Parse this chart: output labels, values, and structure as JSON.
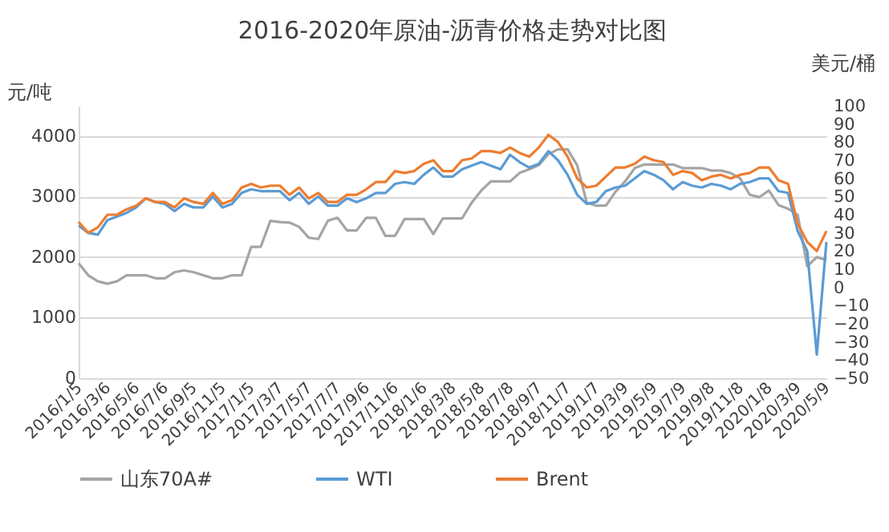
{
  "chart_data": {
    "type": "line",
    "title": "2016-2020年原油-沥青价格走势对比图",
    "ylabel": "元/吨",
    "y2label": "美元/桶",
    "categories": [
      "2016/1/5",
      null,
      null,
      "2016/3/6",
      null,
      null,
      "2016/5/6",
      null,
      null,
      "2016/7/6",
      null,
      null,
      "2016/9/5",
      null,
      null,
      "2016/11/5",
      null,
      null,
      "2017/1/5",
      null,
      null,
      "2017/3/7",
      null,
      null,
      "2017/5/7",
      null,
      null,
      "2017/7/7",
      null,
      null,
      "2017/9/6",
      null,
      null,
      "2017/11/6",
      null,
      null,
      "2018/1/6",
      null,
      null,
      "2018/3/8",
      null,
      null,
      "2018/5/8",
      null,
      null,
      "2018/7/8",
      null,
      null,
      "2018/9/7",
      null,
      null,
      "2018/11/7",
      null,
      null,
      "2019/1/7",
      null,
      null,
      "2019/3/9",
      null,
      null,
      "2019/5/9",
      null,
      null,
      "2019/7/9",
      null,
      null,
      "2019/9/8",
      null,
      null,
      "2019/11/8",
      null,
      null,
      "2020/1/8",
      null,
      null,
      "2020/3/9",
      null,
      null,
      "2020/5/9"
    ],
    "series": [
      {
        "name": "山东70A#",
        "color": "#a5a5a5",
        "values": [
          1900,
          1700,
          1600,
          1560,
          1600,
          1700,
          1700,
          1700,
          1650,
          1650,
          1750,
          1780,
          1750,
          1700,
          1650,
          1650,
          1700,
          1700,
          2170,
          2170,
          2600,
          2580,
          2570,
          2500,
          2320,
          2300,
          2600,
          2650,
          2440,
          2440,
          2650,
          2650,
          2350,
          2350,
          2630,
          2630,
          2630,
          2380,
          2640,
          2640,
          2640,
          2900,
          3100,
          3250,
          3250,
          3250,
          3390,
          3450,
          3520,
          3700,
          3780,
          3780,
          3520,
          2900,
          2850,
          2850,
          3080,
          3250,
          3470,
          3530,
          3530,
          3530,
          3530,
          3470,
          3470,
          3470,
          3430,
          3430,
          3390,
          3300,
          3030,
          2990,
          3100,
          2860,
          2800,
          2700,
          1850,
          2000,
          1950
        ]
      },
      {
        "name": "WTI",
        "color": "#5b9bd5",
        "axis": "y2",
        "values": [
          34,
          30,
          29,
          37,
          39,
          41,
          44,
          49,
          47,
          46,
          42,
          46,
          44,
          44,
          50,
          44,
          46,
          52,
          54,
          53,
          53,
          53,
          48,
          52,
          46,
          50,
          45,
          45,
          49,
          47,
          49,
          52,
          52,
          57,
          58,
          57,
          62,
          66,
          61,
          61,
          65,
          67,
          69,
          67,
          65,
          73,
          69,
          66,
          68,
          75,
          70,
          62,
          51,
          46,
          47,
          53,
          55,
          56,
          60,
          64,
          62,
          59,
          54,
          58,
          56,
          55,
          57,
          56,
          54,
          57,
          58,
          60,
          60,
          53,
          52,
          31,
          20,
          -37,
          25
        ]
      },
      {
        "name": "Brent",
        "color": "#ed7d31",
        "axis": "y2",
        "values": [
          36,
          30,
          33,
          40,
          40,
          43,
          45,
          49,
          47,
          47,
          44,
          49,
          47,
          46,
          52,
          46,
          48,
          55,
          57,
          55,
          56,
          56,
          51,
          55,
          49,
          52,
          47,
          47,
          51,
          51,
          54,
          58,
          58,
          64,
          63,
          64,
          68,
          70,
          64,
          64,
          70,
          71,
          75,
          75,
          74,
          77,
          74,
          72,
          77,
          84,
          80,
          72,
          60,
          55,
          56,
          61,
          66,
          66,
          68,
          72,
          70,
          69,
          62,
          64,
          63,
          59,
          61,
          62,
          60,
          62,
          63,
          66,
          66,
          59,
          57,
          35,
          25,
          20,
          31
        ]
      }
    ],
    "ylim": [
      0,
      4500
    ],
    "yticks": [
      0,
      1000,
      2000,
      3000,
      4000
    ],
    "y2lim": [
      -50,
      100
    ],
    "y2ticks": [
      -50,
      -40,
      -30,
      -20,
      -10,
      0,
      10,
      20,
      30,
      40,
      50,
      60,
      70,
      80,
      90,
      100
    ],
    "grid": "y",
    "legend": "bottom"
  }
}
